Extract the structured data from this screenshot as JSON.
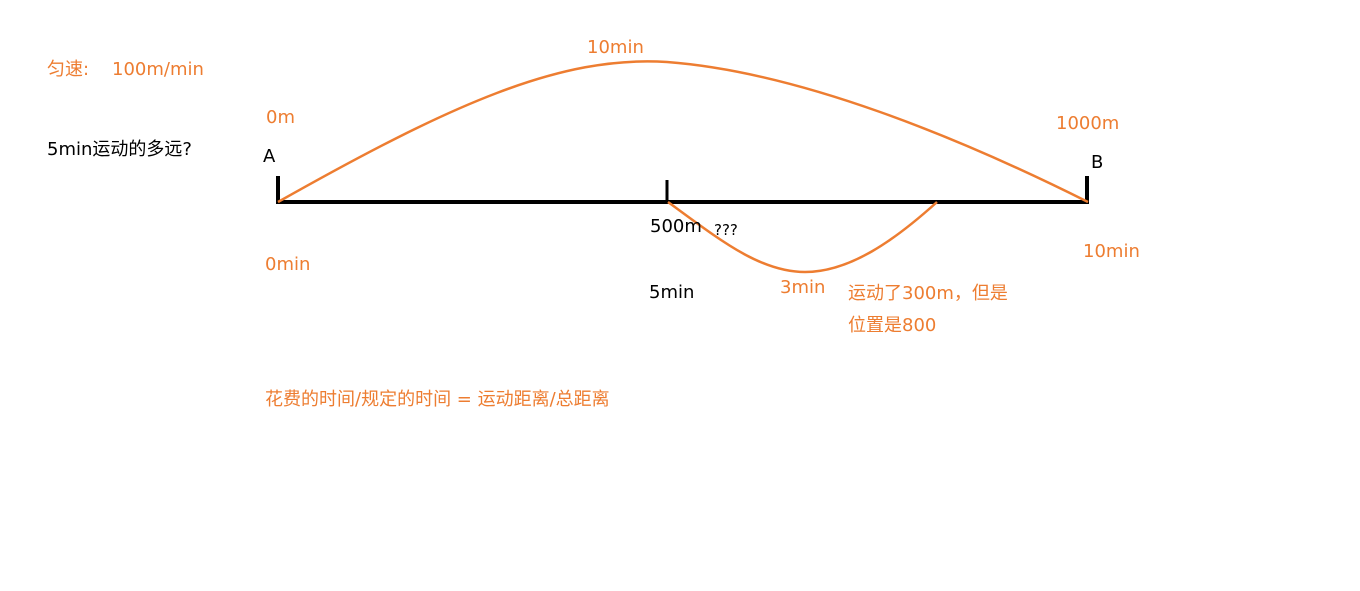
{
  "colors": {
    "accent": "#ED7D31",
    "ink": "#000000",
    "background": "#ffffff"
  },
  "texts": {
    "speed_label": "匀速:",
    "speed_value": "100m/min",
    "question": "5min运动的多远?",
    "point_a": "A",
    "point_b": "B",
    "start_distance": "0m",
    "end_distance": "1000m",
    "arc_time": "10min",
    "mid_distance": "500m",
    "unknown": "???",
    "start_time": "0min",
    "end_time": "10min",
    "mid_time": "5min",
    "small_arc_time": "3min",
    "note_line1": "运动了300m，但是",
    "note_line2": "位置是800",
    "formula": "花费的时间/规定的时间 = 运动距离/总距离"
  }
}
